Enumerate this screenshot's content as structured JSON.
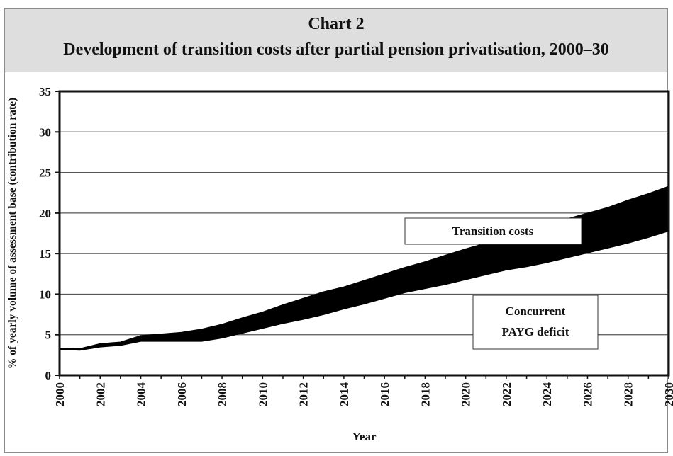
{
  "chart_data": {
    "type": "area",
    "title": "Chart 2",
    "subtitle": "Development of transition costs after partial pension privatisation, 2000–30",
    "xlabel": "Year",
    "ylabel": "% of yearly volume of assessment base (contribution rate)",
    "xlim": [
      2000,
      2030
    ],
    "ylim": [
      0,
      35
    ],
    "grid": true,
    "yticks": [
      "0",
      "5",
      "10",
      "15",
      "20",
      "25",
      "30",
      "35"
    ],
    "xticks": [
      "2000",
      "2002",
      "2004",
      "2006",
      "2008",
      "2010",
      "2012",
      "2014",
      "2016",
      "2018",
      "2020",
      "2022",
      "2024",
      "2026",
      "2028",
      "2030"
    ],
    "x": [
      2000,
      2001,
      2002,
      2003,
      2004,
      2005,
      2006,
      2007,
      2008,
      2009,
      2010,
      2011,
      2012,
      2013,
      2014,
      2015,
      2016,
      2017,
      2018,
      2019,
      2020,
      2021,
      2022,
      2023,
      2024,
      2025,
      2026,
      2027,
      2028,
      2029,
      2030
    ],
    "series": [
      {
        "name": "Concurrent PAYG deficit",
        "values": [
          3.2,
          3.1,
          3.5,
          3.7,
          4.2,
          4.2,
          4.2,
          4.2,
          4.6,
          5.2,
          5.8,
          6.4,
          6.9,
          7.5,
          8.2,
          8.8,
          9.5,
          10.2,
          10.7,
          11.2,
          11.8,
          12.4,
          13.0,
          13.4,
          13.9,
          14.5,
          15.1,
          15.7,
          16.3,
          17.0,
          17.8
        ]
      },
      {
        "name": "Transition costs",
        "values": [
          3.3,
          3.3,
          3.9,
          4.1,
          4.9,
          5.1,
          5.3,
          5.7,
          6.3,
          7.1,
          7.8,
          8.7,
          9.5,
          10.3,
          10.9,
          11.7,
          12.5,
          13.3,
          14.0,
          14.8,
          15.6,
          16.3,
          17.1,
          17.9,
          18.6,
          19.3,
          20.0,
          20.7,
          21.6,
          22.4,
          23.3
        ]
      }
    ],
    "annotations": [
      {
        "text": "Transition costs"
      },
      {
        "text_lines": [
          "Concurrent",
          "PAYG deficit"
        ]
      }
    ]
  }
}
